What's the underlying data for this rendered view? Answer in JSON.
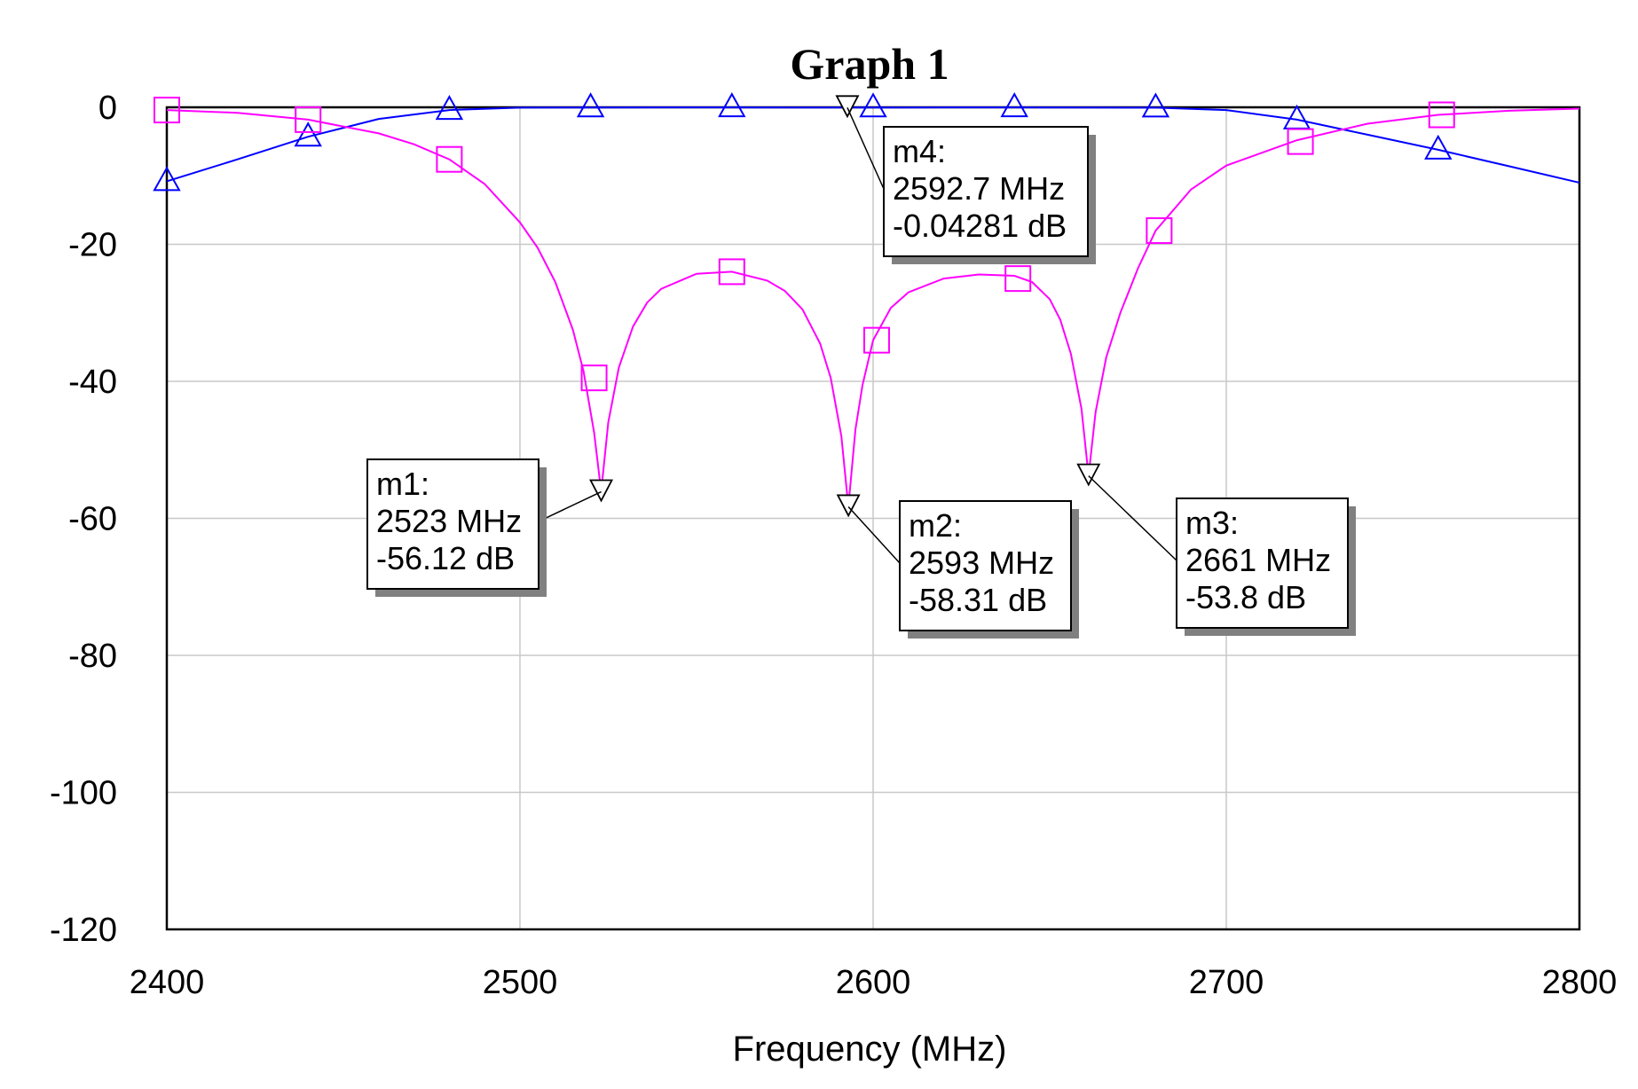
{
  "chart_data": {
    "type": "line",
    "title": "Graph 1",
    "xlabel": "Frequency (MHz)",
    "ylabel": "",
    "xlim": [
      2400,
      2800
    ],
    "ylim": [
      -120,
      0
    ],
    "xticks": [
      "2400",
      "2500",
      "2600",
      "2700",
      "2800"
    ],
    "yticks": [
      "0",
      "-20",
      "-40",
      "-60",
      "-80",
      "-100",
      "-120"
    ],
    "grid": true,
    "series": [
      {
        "color": "#0000ff",
        "symbol": "triangle-up",
        "x": [
          2400,
          2420,
          2440,
          2460,
          2480,
          2500,
          2520,
          2540,
          2560,
          2580,
          2600,
          2620,
          2640,
          2660,
          2680,
          2700,
          2720,
          2740,
          2760,
          2780,
          2800
        ],
        "y": [
          -10.8,
          -7.6,
          -4.3,
          -1.7,
          -0.4,
          -0.05,
          -0.03,
          -0.01,
          -0.01,
          -0.04,
          -0.04,
          -0.01,
          -0.01,
          -0.03,
          -0.05,
          -0.4,
          -1.8,
          -4.0,
          -6.2,
          -8.6,
          -11.0
        ],
        "marker_x": [
          2400,
          2440,
          2480,
          2520,
          2560,
          2600,
          2640,
          2680,
          2720,
          2760
        ],
        "marker_y": [
          -10.8,
          -4.3,
          -0.4,
          -0.03,
          -0.01,
          -0.04,
          -0.01,
          -0.05,
          -1.8,
          -6.2
        ]
      },
      {
        "color": "#ff00ff",
        "symbol": "square",
        "x": [
          2400,
          2420,
          2440,
          2460,
          2470,
          2480,
          2490,
          2500,
          2505,
          2510,
          2515,
          2518,
          2521,
          2523,
          2525,
          2528,
          2532,
          2536,
          2540,
          2550,
          2560,
          2570,
          2575,
          2580,
          2585,
          2588,
          2591,
          2593,
          2595,
          2597,
          2600,
          2605,
          2610,
          2620,
          2630,
          2640,
          2645,
          2650,
          2653,
          2656,
          2659,
          2661,
          2663,
          2666,
          2670,
          2675,
          2680,
          2690,
          2700,
          2720,
          2740,
          2760,
          2780,
          2800
        ],
        "y": [
          -0.4,
          -0.8,
          -1.8,
          -3.8,
          -5.4,
          -7.6,
          -11.2,
          -16.8,
          -20.5,
          -25.5,
          -32.5,
          -38.5,
          -47.5,
          -56.12,
          -46.0,
          -38.0,
          -32.0,
          -28.5,
          -26.5,
          -24.3,
          -24.0,
          -25.3,
          -26.8,
          -29.5,
          -34.5,
          -39.5,
          -48.0,
          -58.31,
          -47.0,
          -40.5,
          -34.0,
          -29.3,
          -27.0,
          -25.0,
          -24.4,
          -24.6,
          -25.5,
          -28.0,
          -31.0,
          -36.0,
          -44.0,
          -53.8,
          -44.5,
          -36.5,
          -30.0,
          -23.5,
          -18.0,
          -12.0,
          -8.5,
          -4.8,
          -2.4,
          -1.1,
          -0.5,
          -0.2
        ],
        "marker_x": [
          2400,
          2440,
          2480,
          2521,
          2560,
          2601,
          2641,
          2681,
          2721,
          2761
        ],
        "marker_y": [
          -0.4,
          -1.8,
          -7.6,
          -39.5,
          -24.0,
          -34.0,
          -25.0,
          -18.0,
          -5.0,
          -1.1
        ]
      }
    ],
    "markers": [
      {
        "name": "m1:",
        "freq": "2523 MHz",
        "value": "-56.12 dB",
        "x": 2523,
        "y": -56.12
      },
      {
        "name": "m2:",
        "freq": "2593 MHz",
        "value": "-58.31 dB",
        "x": 2593,
        "y": -58.31
      },
      {
        "name": "m3:",
        "freq": "2661 MHz",
        "value": "-53.8 dB",
        "x": 2661,
        "y": -53.8
      },
      {
        "name": "m4:",
        "freq": "2592.7 MHz",
        "value": "-0.04281 dB",
        "x": 2592.7,
        "y": -0.04281
      }
    ]
  }
}
